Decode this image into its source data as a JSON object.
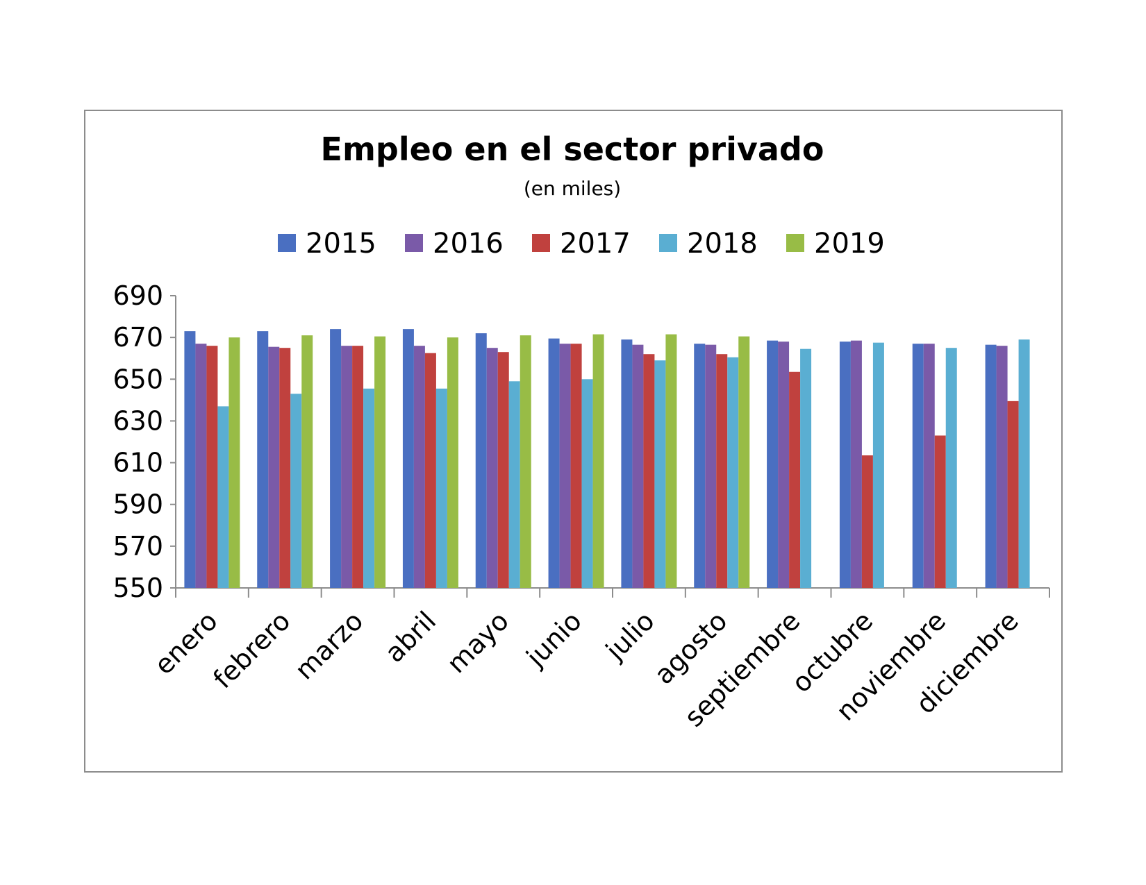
{
  "chart_data": {
    "type": "bar",
    "title": "Empleo en el sector privado",
    "subtitle": "(en miles)",
    "xlabel": "",
    "ylabel": "",
    "ylim": [
      550,
      690
    ],
    "yticks": [
      550,
      570,
      590,
      610,
      630,
      650,
      670,
      690
    ],
    "grid": false,
    "legend_position": "top",
    "categories": [
      "enero",
      "febrero",
      "marzo",
      "abril",
      "mayo",
      "junio",
      "julio",
      "agosto",
      "septiembre",
      "octubre",
      "noviembre",
      "diciembre"
    ],
    "series": [
      {
        "name": "2015",
        "color": "#4a6fc1",
        "values": [
          673,
          673,
          674,
          674,
          672,
          669.5,
          669,
          667,
          668.5,
          668,
          667,
          666.5
        ]
      },
      {
        "name": "2016",
        "color": "#7a5aa8",
        "values": [
          667,
          665.5,
          666,
          666,
          665,
          667,
          666.5,
          666.5,
          668,
          668.5,
          667,
          666
        ]
      },
      {
        "name": "2017",
        "color": "#c0413e",
        "values": [
          666,
          665,
          666,
          662.5,
          663,
          667,
          662,
          662,
          653.5,
          613.5,
          623,
          639.5
        ]
      },
      {
        "name": "2018",
        "color": "#5aaed2",
        "values": [
          637,
          643,
          645.5,
          645.5,
          649,
          650,
          659,
          660.5,
          664.5,
          667.5,
          665,
          669
        ]
      },
      {
        "name": "2019",
        "color": "#98bc46",
        "values": [
          670,
          671,
          670.5,
          670,
          671,
          671.5,
          671.5,
          670.5,
          null,
          null,
          null,
          null
        ]
      }
    ]
  }
}
